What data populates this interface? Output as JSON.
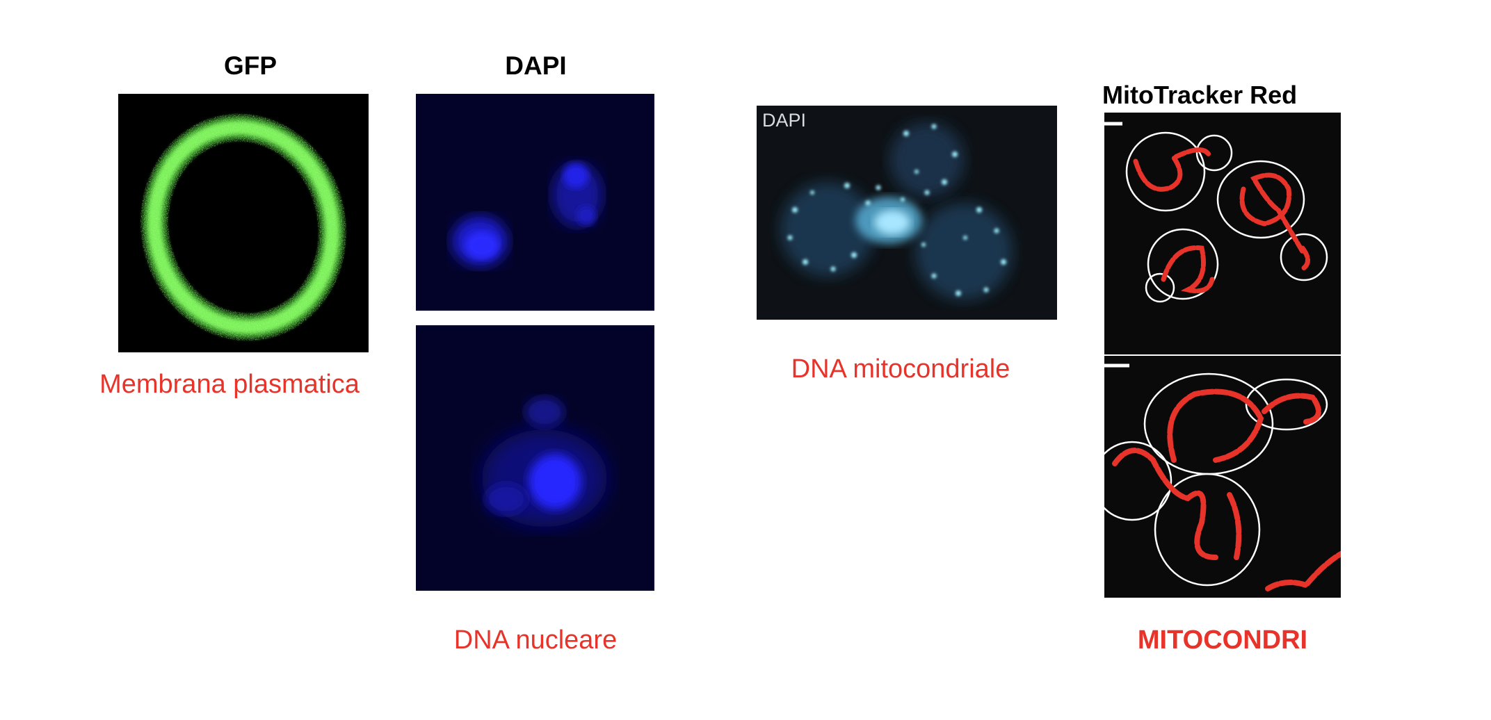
{
  "panels": {
    "gfp": {
      "header": "GFP",
      "caption": "Membrana plasmatica",
      "color": "#6ee04a"
    },
    "dapi_nuclear": {
      "header": "DAPI",
      "caption": "DNA nucleare",
      "color": "#2222ee"
    },
    "dapi_mito": {
      "inset_label": "DAPI",
      "caption": "DNA mitocondriale",
      "color": "#5ec8e8"
    },
    "mitotracker": {
      "header": "MitoTracker Red",
      "caption": "MITOCONDRI",
      "color": "#e8332a"
    }
  },
  "colors": {
    "caption": "#e8332a",
    "background": "#ffffff"
  }
}
